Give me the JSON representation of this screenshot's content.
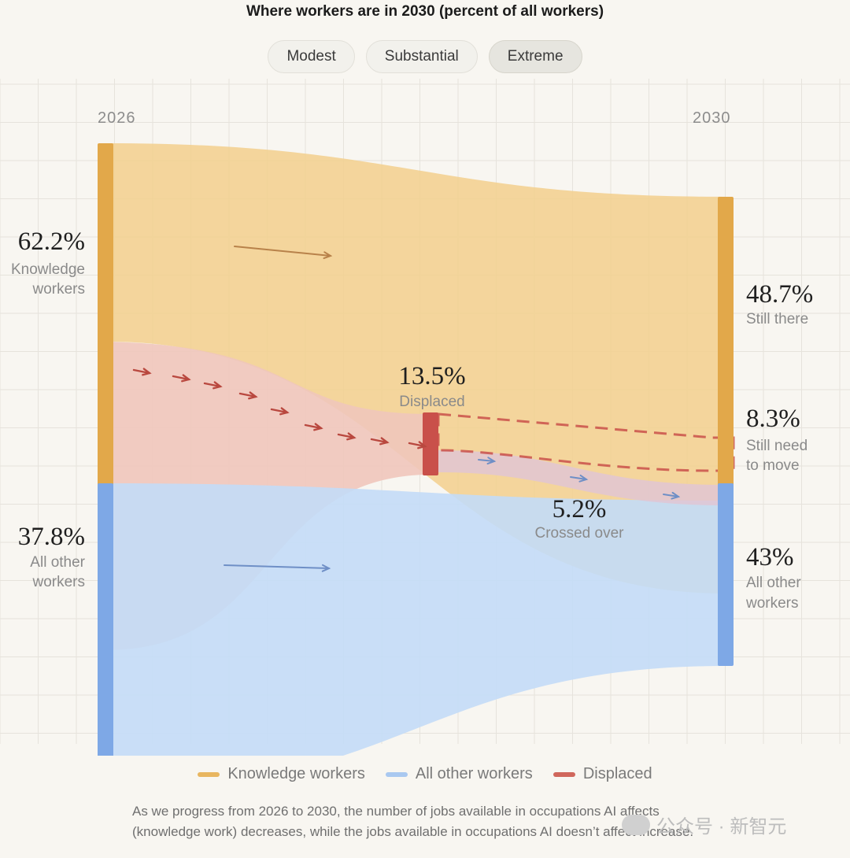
{
  "title": "Where workers are in 2030 (percent of all workers)",
  "scenario_tabs": [
    {
      "label": "Modest",
      "active": false
    },
    {
      "label": "Substantial",
      "active": false
    },
    {
      "label": "Extreme",
      "active": true
    }
  ],
  "axis": {
    "start_year": "2026",
    "end_year": "2030"
  },
  "colors": {
    "knowledge": "#f3d08f",
    "knowledge_bar": "#e2a84a",
    "other": "#c3dcf7",
    "other_bar": "#7ea8e6",
    "displaced": "#f0c7bb",
    "displaced_bar": "#c9504a",
    "crossed": "#e1c5d3",
    "arrow_red": "#b9483f",
    "arrow_blue": "#6f8fc6",
    "grid": "#e6e3dc"
  },
  "labels": {
    "knowledge_2026": {
      "pct": "62.2%",
      "line1": "Knowledge",
      "line2": "workers"
    },
    "other_2026": {
      "pct": "37.8%",
      "line1": "All other",
      "line2": "workers"
    },
    "displaced": {
      "pct": "13.5%",
      "line1": "Displaced"
    },
    "crossed": {
      "pct": "5.2%",
      "line1": "Crossed over"
    },
    "still_there": {
      "pct": "48.7%",
      "line1": "Still there"
    },
    "still_need": {
      "pct": "8.3%",
      "line1": "Still need",
      "line2": "to move"
    },
    "other_2030": {
      "pct": "43%",
      "line1": "All other",
      "line2": "workers"
    }
  },
  "chart_data": {
    "type": "sankey",
    "title": "Where workers are in 2030 (percent of all workers)",
    "scenario": "Extreme",
    "nodes_2026": [
      {
        "name": "Knowledge workers",
        "value": 62.2
      },
      {
        "name": "All other workers",
        "value": 37.8
      }
    ],
    "intermediate": [
      {
        "name": "Displaced",
        "value": 13.5
      }
    ],
    "nodes_2030": [
      {
        "name": "Still there",
        "value": 48.7
      },
      {
        "name": "Still need to move",
        "value": 8.3
      },
      {
        "name": "All other workers",
        "value": 43
      }
    ],
    "flows": [
      {
        "from": "Knowledge workers",
        "to": "Still there",
        "value": 48.7
      },
      {
        "from": "Knowledge workers",
        "to": "Displaced",
        "value": 13.5
      },
      {
        "from": "Displaced",
        "to": "Still need to move",
        "value": 8.3
      },
      {
        "from": "Displaced",
        "to": "All other workers",
        "value": 5.2,
        "label": "Crossed over"
      },
      {
        "from": "All other workers",
        "to": "All other workers",
        "value": 37.8
      }
    ]
  },
  "legend": [
    {
      "label": "Knowledge workers",
      "color": "#e8b660"
    },
    {
      "label": "All other workers",
      "color": "#a9c8f0"
    },
    {
      "label": "Displaced",
      "color": "#d0675c"
    }
  ],
  "caption": "As we progress from 2026 to 2030, the number of jobs available in occupations AI affects (knowledge work) decreases, while the jobs available in occupations AI doesn’t affect increase.",
  "watermark": "公众号 · 新智元"
}
